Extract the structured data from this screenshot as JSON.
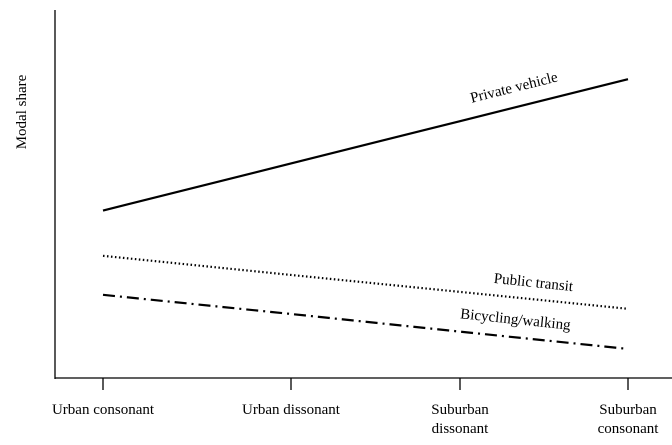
{
  "chart_data": {
    "type": "line",
    "ylabel": "Modal share",
    "categories": [
      "Urban consonant",
      "Urban dissonant",
      "Suburban dissonant",
      "Suburban consonant"
    ],
    "ylim": [
      0,
      100
    ],
    "series": [
      {
        "name": "Private vehicle",
        "color": "#000000",
        "style": "solid",
        "values": [
          45.5,
          58.3,
          69.8,
          81.2
        ]
      },
      {
        "name": "Public transit",
        "color": "#000000",
        "style": "dotted",
        "values": [
          33.2,
          28.0,
          23.4,
          18.8
        ]
      },
      {
        "name": "Bicycling/walking",
        "color": "#000000",
        "style": "dashdot",
        "values": [
          22.6,
          17.4,
          12.6,
          7.9
        ]
      }
    ]
  }
}
